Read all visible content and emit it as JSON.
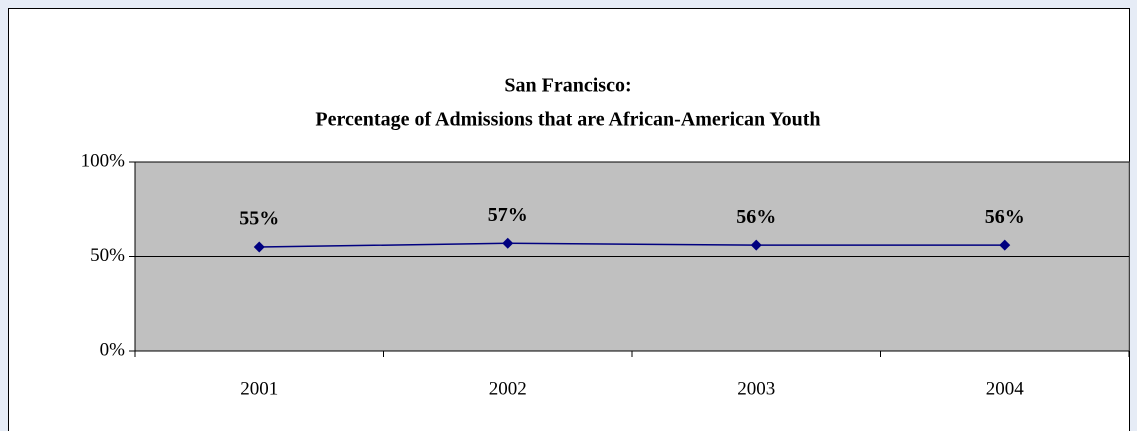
{
  "chart_data": {
    "type": "line",
    "title": "San Francisco:",
    "subtitle": "Percentage of Admissions that are African-American Youth",
    "categories": [
      "2001",
      "2002",
      "2003",
      "2004"
    ],
    "values": [
      55,
      57,
      56,
      56
    ],
    "value_labels": [
      "55%",
      "57%",
      "56%",
      "56%"
    ],
    "color": "#000080",
    "plot_background": "#c0c0c0",
    "ylim": [
      0,
      100
    ],
    "yticks": [
      {
        "value": 0,
        "label": "0%"
      },
      {
        "value": 50,
        "label": "50%"
      },
      {
        "value": 100,
        "label": "100%"
      }
    ],
    "grid": true
  }
}
